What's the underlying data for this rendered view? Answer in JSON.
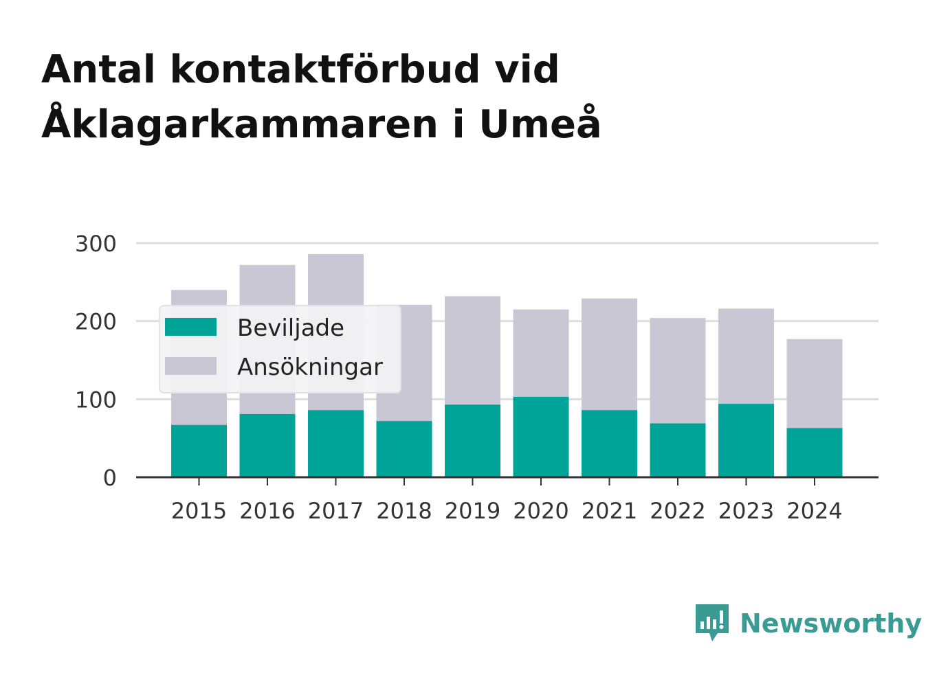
{
  "title": {
    "line1": "Antal kontaktförbud vid",
    "line2": "Åklagarkammaren i Umeå"
  },
  "brand": {
    "name": "Newsworthy",
    "icon": "newsworthy-logo-icon"
  },
  "colors": {
    "beviljade": "#00a398",
    "ansokningar": "#c8c7d3",
    "grid": "#dddddd",
    "axis": "#333333",
    "brand": "#3a9a94"
  },
  "chart_data": {
    "type": "bar",
    "categories": [
      "2015",
      "2016",
      "2017",
      "2018",
      "2019",
      "2020",
      "2021",
      "2022",
      "2023",
      "2024"
    ],
    "series": [
      {
        "name": "Ansökningar",
        "values": [
          240,
          272,
          286,
          221,
          232,
          215,
          229,
          204,
          216,
          177
        ]
      },
      {
        "name": "Beviljade",
        "values": [
          67,
          81,
          86,
          72,
          93,
          103,
          86,
          69,
          94,
          63
        ]
      }
    ],
    "yticks": [
      "0",
      "100",
      "200",
      "300"
    ],
    "ylim": [
      0,
      300
    ],
    "grid": true,
    "overlay": true,
    "legend": {
      "position": "top-left",
      "items": [
        "Beviljade",
        "Ansökningar"
      ]
    }
  }
}
